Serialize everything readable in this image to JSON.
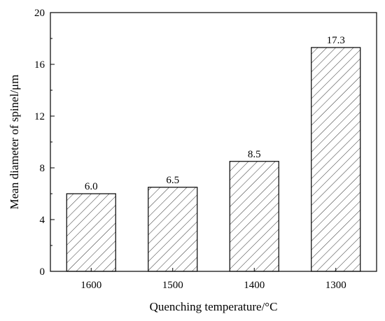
{
  "chart_data": {
    "type": "bar",
    "categories": [
      "1600",
      "1500",
      "1400",
      "1300"
    ],
    "values": [
      6.0,
      6.5,
      8.5,
      17.3
    ],
    "data_labels": [
      "6.0",
      "6.5",
      "8.5",
      "17.3"
    ],
    "title": "",
    "xlabel": "Quenching temperature/°C",
    "ylabel": "Mean diameter of spinel/μm",
    "ylim": [
      0,
      20
    ],
    "yticks": [
      0,
      4,
      8,
      12,
      16,
      20
    ],
    "ytick_labels": [
      "0",
      "4",
      "8",
      "12",
      "16",
      "20"
    ],
    "bar_fill": "hatched",
    "bar_color": "#ffffff",
    "hatch_color": "#333333",
    "grid": false,
    "legend": "none"
  }
}
